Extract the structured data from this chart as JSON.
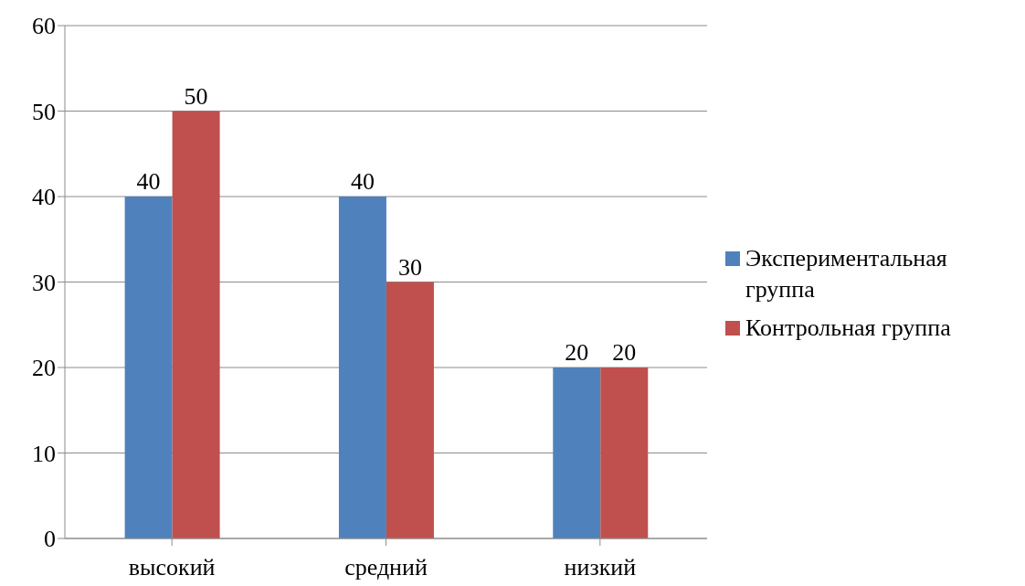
{
  "chart_data": {
    "type": "bar",
    "categories": [
      "высокий",
      "средний",
      "низкий"
    ],
    "series": [
      {
        "name": "Экспериментальная группа",
        "color": "#4f81bd",
        "values": [
          40,
          40,
          20
        ]
      },
      {
        "name": "Контрольная группа",
        "color": "#c0504d",
        "values": [
          50,
          30,
          20
        ]
      }
    ],
    "ylim": [
      0,
      60
    ],
    "yticks": [
      0,
      10,
      20,
      30,
      40,
      50,
      60
    ],
    "grid": "y",
    "legend": "right",
    "data_labels": true
  }
}
